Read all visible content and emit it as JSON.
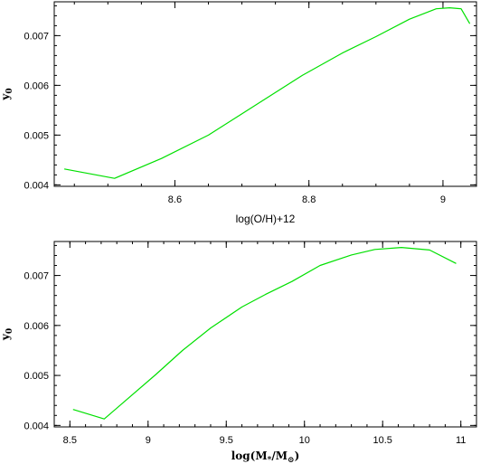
{
  "chart_data": [
    {
      "type": "line",
      "xlabel": "log(O/H)+12",
      "ylabel": "y",
      "ylabel_sub": "0",
      "xlim": [
        8.42,
        9.05
      ],
      "ylim": [
        0.00397,
        0.00768
      ],
      "xticks": [
        8.6,
        8.8,
        9
      ],
      "xtick_labels": [
        "8.6",
        "8.8",
        "9"
      ],
      "yticks": [
        0.004,
        0.005,
        0.006,
        0.007
      ],
      "ytick_labels": [
        "0.004",
        "0.005",
        "0.006",
        "0.007"
      ],
      "grid": false,
      "series": [
        {
          "color": "#00e000",
          "x": [
            8.435,
            8.51,
            8.58,
            8.65,
            8.72,
            8.79,
            8.85,
            8.9,
            8.95,
            8.99,
            9.01,
            9.027,
            9.04
          ],
          "y": [
            0.00432,
            0.00413,
            0.00453,
            0.005,
            0.0056,
            0.0062,
            0.00665,
            0.00698,
            0.00733,
            0.00754,
            0.00756,
            0.00754,
            0.00724
          ]
        }
      ]
    },
    {
      "type": "line",
      "xlabel_base": "log(M",
      "xlabel_sub1": "*",
      "xlabel_mid": "/M",
      "xlabel_sub2": "⊙",
      "xlabel_end": ")",
      "ylabel": "y",
      "ylabel_sub": "0",
      "xlim": [
        8.4,
        11.1
      ],
      "ylim": [
        0.00397,
        0.00768
      ],
      "xticks": [
        8.5,
        9,
        9.5,
        10,
        10.5,
        11
      ],
      "xtick_labels": [
        "8.5",
        "9",
        "9.5",
        "10",
        "10.5",
        "11"
      ],
      "yticks": [
        0.004,
        0.005,
        0.006,
        0.007
      ],
      "ytick_labels": [
        "0.004",
        "0.005",
        "0.006",
        "0.007"
      ],
      "grid": false,
      "series": [
        {
          "color": "#00e000",
          "x": [
            8.52,
            8.72,
            8.85,
            9.05,
            9.22,
            9.4,
            9.6,
            9.75,
            9.92,
            10.1,
            10.3,
            10.45,
            10.62,
            10.8,
            10.97
          ],
          "y": [
            0.00432,
            0.00413,
            0.00448,
            0.00502,
            0.0055,
            0.00595,
            0.00637,
            0.00662,
            0.00688,
            0.0072,
            0.00741,
            0.00752,
            0.00756,
            0.00751,
            0.00724
          ]
        }
      ]
    }
  ]
}
